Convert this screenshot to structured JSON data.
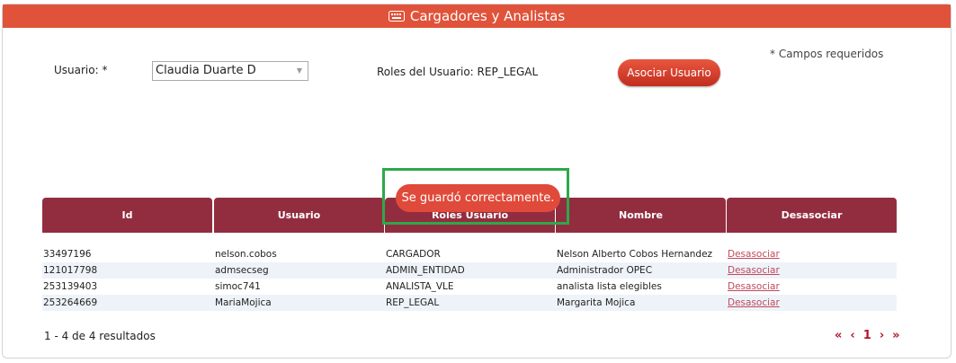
{
  "header": {
    "title": "Cargadores y Analistas"
  },
  "form": {
    "usuario_label": "Usuario: *",
    "selected_user": "Claudia Duarte D",
    "roles_label": "Roles del Usuario:",
    "roles_value": "REP_LEGAL",
    "button": "Asociar Usuario",
    "required_note": "* Campos requeridos"
  },
  "toast": "Se guardó correctamente.",
  "table": {
    "columns": [
      "Id",
      "Usuario",
      "Roles Usuario",
      "Nombre",
      "Desasociar"
    ],
    "rows": [
      [
        "33497196",
        "nelson.cobos",
        "CARGADOR",
        "Nelson Alberto Cobos Hernandez",
        "Desasociar"
      ],
      [
        "121017798",
        "admsecseg",
        "ADMIN_ENTIDAD",
        "Administrador OPEC",
        "Desasociar"
      ],
      [
        "253139403",
        "simoc741",
        "ANALISTA_VLE",
        "analista lista elegibles",
        "Desasociar"
      ],
      [
        "253264669",
        "MariaMojica",
        "REP_LEGAL",
        "Margarita Mojica",
        "Desasociar"
      ]
    ]
  },
  "footer": {
    "results": "1 - 4 de 4 resultados",
    "pager": [
      "«",
      "‹",
      "1",
      "›",
      "»"
    ]
  }
}
